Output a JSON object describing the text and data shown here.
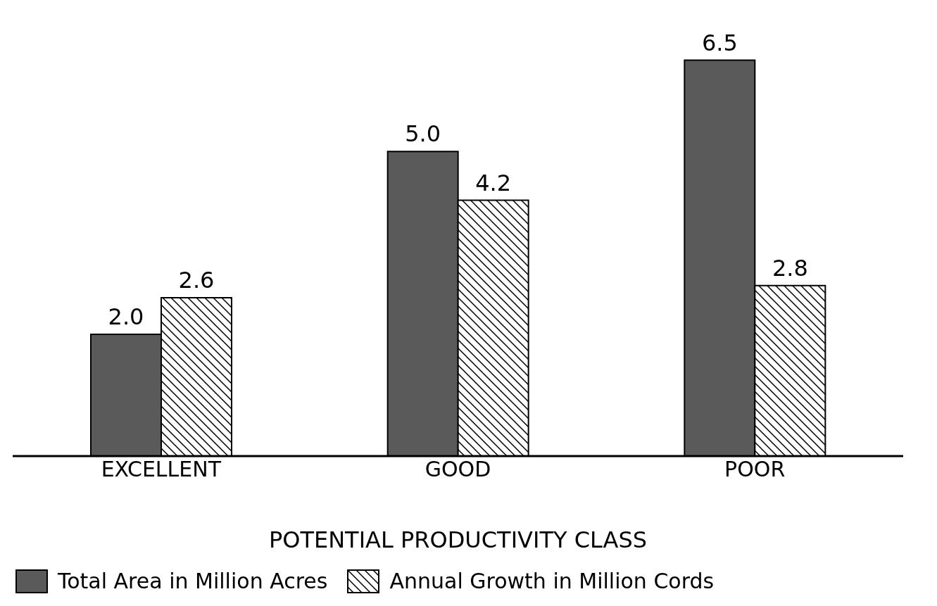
{
  "chart_data": {
    "type": "bar",
    "xlabel": "POTENTIAL PRODUCTIVITY CLASS",
    "categories": [
      "EXCELLENT",
      "GOOD",
      "POOR"
    ],
    "series": [
      {
        "name": "Total Area in Million Acres",
        "color": "#5a5a5a",
        "values": [
          2.0,
          5.0,
          6.5
        ],
        "value_labels": [
          "2.0",
          "5.0",
          "6.5"
        ]
      },
      {
        "name": "Annual Growth in Million Cords",
        "color": "#000000",
        "values": [
          2.6,
          4.2,
          2.8
        ],
        "value_labels": [
          "2.6",
          "4.2",
          "2.8"
        ]
      }
    ],
    "legend": "bottom",
    "grid": false
  }
}
